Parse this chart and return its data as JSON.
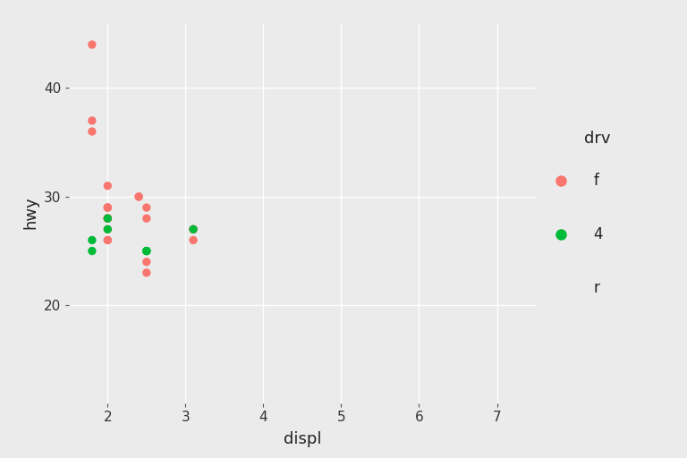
{
  "title": "",
  "xlabel": "displ",
  "ylabel": "hwy",
  "xlim": [
    1.5,
    7.5
  ],
  "ylim": [
    11,
    46
  ],
  "xticks": [
    2,
    3,
    4,
    5,
    6,
    7
  ],
  "yticks": [
    20,
    30,
    40
  ],
  "outer_background": "#EBEBEB",
  "plot_background": "#EBEBEB",
  "grid_color": "#FFFFFF",
  "legend_title": "drv",
  "legend_labels": [
    "f",
    "4",
    "r"
  ],
  "legend_colors": [
    "#F8766D",
    "#00BA38",
    null
  ],
  "point_size": 45,
  "categories": {
    "f": {
      "color": "#F8766D",
      "displ": [
        1.8,
        1.8,
        1.8,
        2.0,
        2.0,
        2.0,
        2.0,
        2.0,
        2.0,
        2.0,
        2.0,
        2.0,
        2.0,
        2.0,
        2.4,
        2.4,
        2.5,
        2.5,
        2.5,
        2.5,
        3.1,
        3.1,
        3.1
      ],
      "hwy": [
        44,
        36,
        37,
        29,
        29,
        28,
        29,
        26,
        26,
        27,
        28,
        28,
        28,
        31,
        30,
        30,
        29,
        28,
        23,
        24,
        27,
        27,
        26
      ]
    },
    "4": {
      "color": "#00BA38",
      "displ": [
        1.8,
        1.8,
        2.0,
        2.0,
        2.5,
        2.5,
        2.5,
        3.1
      ],
      "hwy": [
        26,
        25,
        28,
        27,
        25,
        25,
        25,
        27
      ]
    },
    "r": {
      "color": null,
      "displ": [],
      "hwy": []
    }
  }
}
